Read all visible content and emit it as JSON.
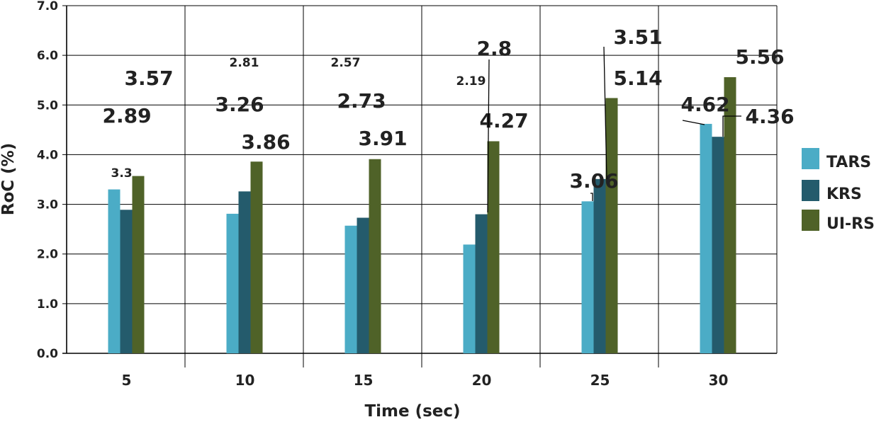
{
  "chart_data": {
    "type": "bar",
    "title": "",
    "xlabel": "Time (sec)",
    "ylabel": "RoC (%)",
    "ylim": [
      0,
      7
    ],
    "yticks": [
      "0.0",
      "1.0",
      "2.0",
      "3.0",
      "4.0",
      "5.0",
      "6.0",
      "7.0"
    ],
    "categories": [
      "5",
      "10",
      "15",
      "20",
      "25",
      "30"
    ],
    "series": [
      {
        "name": "TARS",
        "color": "#4bacc6",
        "values": [
          3.3,
          2.81,
          2.57,
          2.19,
          3.06,
          4.62
        ],
        "labels": [
          "3.3",
          "2.81",
          "2.57",
          "2.19",
          "3.06",
          "4.62"
        ]
      },
      {
        "name": "KRS",
        "color": "#245b6c",
        "values": [
          2.89,
          3.26,
          2.73,
          2.8,
          3.51,
          4.36
        ],
        "labels": [
          "2.89",
          "3.26",
          "2.73",
          "2.8",
          "3.51",
          "4.36"
        ]
      },
      {
        "name": "UI-RS",
        "color": "#4f6228",
        "values": [
          3.57,
          3.86,
          3.91,
          4.27,
          5.14,
          5.56
        ],
        "labels": [
          "3.57",
          "3.86",
          "3.91",
          "4.27",
          "5.14",
          "5.56"
        ]
      }
    ],
    "legend": "right",
    "grid": true
  }
}
